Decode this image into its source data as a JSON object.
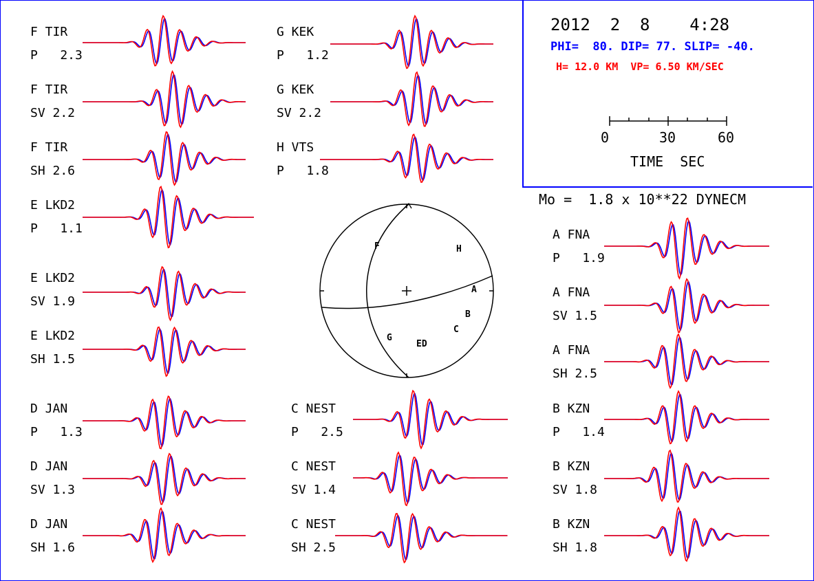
{
  "header": {
    "date": "2012  2  8    4:28",
    "mechanism": "PHI=  80. DIP= 77. SLIP= -40.",
    "depth": "H= 12.0 KM  VP= 6.50 KM/SEC",
    "time_ticks": [
      "0",
      "30",
      "60"
    ],
    "time_label": "TIME  SEC",
    "moment": "Mo =  1.8 x 10**22 DYNECM"
  },
  "colors": {
    "frame": "#0000ff",
    "observed": "#0000ff",
    "synthetic": "#ff0000"
  },
  "traces": [
    {
      "station": "F TIR",
      "phase": "P   2.3"
    },
    {
      "station": "F TIR",
      "phase": "SV 2.2"
    },
    {
      "station": "F TIR",
      "phase": "SH 2.6"
    },
    {
      "station": "E LKD2",
      "phase": "P   1.1"
    },
    {
      "station": "E LKD2",
      "phase": "SV 1.9"
    },
    {
      "station": "E LKD2",
      "phase": "SH 1.5"
    },
    {
      "station": "D JAN",
      "phase": "P   1.3"
    },
    {
      "station": "D JAN",
      "phase": "SV 1.3"
    },
    {
      "station": "D JAN",
      "phase": "SH 1.6"
    },
    {
      "station": "G KEK",
      "phase": "P   1.2"
    },
    {
      "station": "G KEK",
      "phase": "SV 2.2"
    },
    {
      "station": "H VTS",
      "phase": "P   1.8"
    },
    {
      "station": "C NEST",
      "phase": "P   2.5"
    },
    {
      "station": "C NEST",
      "phase": "SV 1.4"
    },
    {
      "station": "C NEST",
      "phase": "SH 2.5"
    },
    {
      "station": "A FNA",
      "phase": "P   1.9"
    },
    {
      "station": "A FNA",
      "phase": "SV 1.5"
    },
    {
      "station": "A FNA",
      "phase": "SH 2.5"
    },
    {
      "station": "B KZN",
      "phase": "P   1.4"
    },
    {
      "station": "B KZN",
      "phase": "SV 1.8"
    },
    {
      "station": "B KZN",
      "phase": "SH 1.8"
    }
  ],
  "beachball": {
    "station_marks": [
      "F",
      "H",
      "A",
      "B",
      "C",
      "G",
      "ED"
    ]
  }
}
